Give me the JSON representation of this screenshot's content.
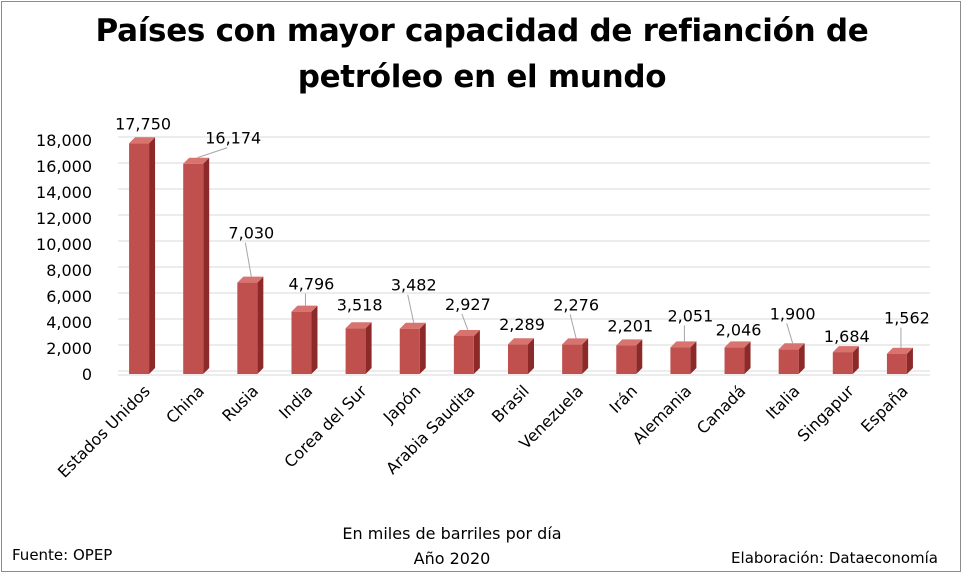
{
  "title_line1": "Países con mayor capacidad de refianción de",
  "title_line2": "petróleo en el mundo",
  "note_line1": "En miles de barriles por día",
  "note_line2": "Año 2020",
  "source": "Fuente: OPEP",
  "credit": "Elaboración: Dataeconomía",
  "colors": {
    "bar_front": "#c0504d",
    "bar_side": "#8b2a28",
    "bar_top": "#d9736f",
    "grid": "#d9d9d9"
  },
  "chart_data": {
    "type": "bar",
    "title": "Países con mayor capacidad de refianción de petróleo en el mundo",
    "ylim": [
      0,
      18000
    ],
    "yticks": [
      0,
      2000,
      4000,
      6000,
      8000,
      10000,
      12000,
      14000,
      16000,
      18000
    ],
    "ytick_labels": [
      "0",
      "2,000",
      "4,000",
      "6,000",
      "8,000",
      "10,000",
      "12,000",
      "14,000",
      "16,000",
      "18,000"
    ],
    "grid": true,
    "categories": [
      "Estados Unidos",
      "China",
      "Rusia",
      "India",
      "Corea del Sur",
      "Japón",
      "Arabia Saudita",
      "Brasil",
      "Venezuela",
      "Irán",
      "Alemania",
      "Canadá",
      "Italia",
      "Singapur",
      "España"
    ],
    "values": [
      17750,
      16174,
      7030,
      4796,
      3518,
      3482,
      2927,
      2289,
      2276,
      2201,
      2051,
      2046,
      1900,
      1684,
      1562
    ],
    "value_labels": [
      "17,750",
      "16,174",
      "7,030",
      "4,796",
      "3,518",
      "3,482",
      "2,927",
      "2,289",
      "2,276",
      "2,201",
      "2,051",
      "2,046",
      "1,900",
      "1,684",
      "1,562"
    ]
  }
}
